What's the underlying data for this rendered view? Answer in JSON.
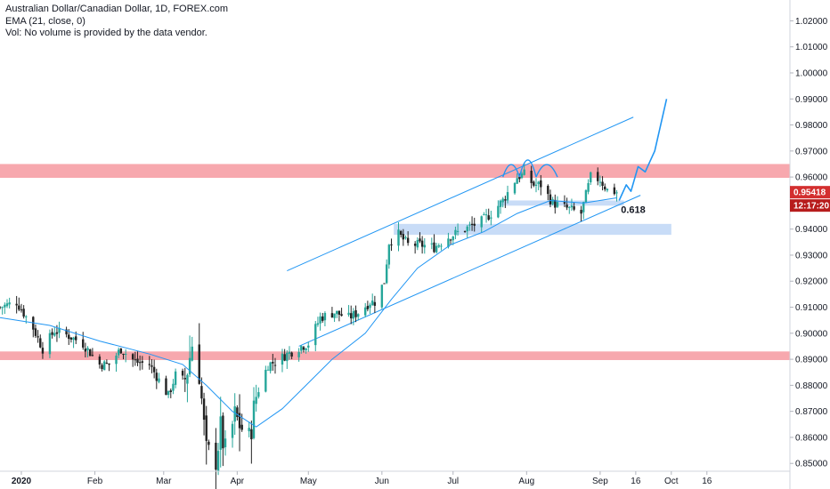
{
  "header": {
    "symbol_line": "Australian Dollar/Canadian Dollar, 1D, FOREX.com",
    "indicator_line": "EMA (21, close, 0)",
    "volume_line": "Vol: No volume is provided by the data vendor."
  },
  "chart_data": {
    "type": "candlestick",
    "title": "Australian Dollar/Canadian Dollar, 1D, FOREX.com",
    "ylim": [
      0.847,
      1.028
    ],
    "y_ticks": [
      0.85,
      0.86,
      0.87,
      0.88,
      0.89,
      0.9,
      0.91,
      0.92,
      0.93,
      0.94,
      0.95,
      0.96,
      0.97,
      0.98,
      0.99,
      1.0,
      1.01,
      1.02
    ],
    "y_tick_labels": [
      "0.85000",
      "0.86000",
      "0.87000",
      "0.88000",
      "0.89000",
      "0.90000",
      "0.91000",
      "0.92000",
      "0.93000",
      "0.94000",
      "0.95000",
      "0.96000",
      "0.97000",
      "0.98000",
      "0.99000",
      "1.00000",
      "1.01000",
      "1.02000"
    ],
    "x_range": [
      "2019-12-23",
      "2020-11-20"
    ],
    "x_ticks": [
      {
        "date": "2020-01-01",
        "label": "2020",
        "bold": true
      },
      {
        "date": "2020-02-01",
        "label": "Feb",
        "bold": false
      },
      {
        "date": "2020-03-01",
        "label": "Mar",
        "bold": false
      },
      {
        "date": "2020-04-01",
        "label": "Apr",
        "bold": false
      },
      {
        "date": "2020-05-01",
        "label": "May",
        "bold": false
      },
      {
        "date": "2020-06-01",
        "label": "Jun",
        "bold": false
      },
      {
        "date": "2020-07-01",
        "label": "Jul",
        "bold": false
      },
      {
        "date": "2020-08-01",
        "label": "Aug",
        "bold": false
      },
      {
        "date": "2020-09-01",
        "label": "Sep",
        "bold": false
      },
      {
        "date": "2020-09-16",
        "label": "16",
        "bold": false
      },
      {
        "date": "2020-10-01",
        "label": "Oct",
        "bold": false
      },
      {
        "date": "2020-10-16",
        "label": "16",
        "bold": false
      }
    ],
    "close_path": [
      [
        "2019-12-23",
        0.91
      ],
      [
        "2019-12-30",
        0.912
      ],
      [
        "2020-01-06",
        0.902
      ],
      [
        "2020-01-10",
        0.894
      ],
      [
        "2020-01-15",
        0.901
      ],
      [
        "2020-01-21",
        0.899
      ],
      [
        "2020-01-27",
        0.896
      ],
      [
        "2020-02-03",
        0.888
      ],
      [
        "2020-02-07",
        0.888
      ],
      [
        "2020-02-12",
        0.894
      ],
      [
        "2020-02-18",
        0.889
      ],
      [
        "2020-02-24",
        0.888
      ],
      [
        "2020-02-28",
        0.882
      ],
      [
        "2020-03-03",
        0.876
      ],
      [
        "2020-03-06",
        0.884
      ],
      [
        "2020-03-09",
        0.879
      ],
      [
        "2020-03-11",
        0.886
      ],
      [
        "2020-03-13",
        0.896
      ],
      [
        "2020-03-16",
        0.885
      ],
      [
        "2020-03-18",
        0.864
      ],
      [
        "2020-03-19",
        0.854
      ],
      [
        "2020-03-23",
        0.852
      ],
      [
        "2020-03-25",
        0.863
      ],
      [
        "2020-03-27",
        0.854
      ],
      [
        "2020-03-31",
        0.868
      ],
      [
        "2020-04-02",
        0.865
      ],
      [
        "2020-04-06",
        0.859
      ],
      [
        "2020-04-09",
        0.876
      ],
      [
        "2020-04-14",
        0.888
      ],
      [
        "2020-04-17",
        0.889
      ],
      [
        "2020-04-22",
        0.892
      ],
      [
        "2020-04-28",
        0.895
      ],
      [
        "2020-05-01",
        0.896
      ],
      [
        "2020-05-06",
        0.906
      ],
      [
        "2020-05-12",
        0.908
      ],
      [
        "2020-05-18",
        0.906
      ],
      [
        "2020-05-22",
        0.908
      ],
      [
        "2020-05-27",
        0.912
      ],
      [
        "2020-05-29",
        0.912
      ],
      [
        "2020-06-02",
        0.92
      ],
      [
        "2020-06-04",
        0.935
      ],
      [
        "2020-06-08",
        0.938
      ],
      [
        "2020-06-12",
        0.934
      ],
      [
        "2020-06-17",
        0.934
      ],
      [
        "2020-06-23",
        0.933
      ],
      [
        "2020-06-29",
        0.937
      ],
      [
        "2020-07-06",
        0.94
      ],
      [
        "2020-07-13",
        0.943
      ],
      [
        "2020-07-17",
        0.946
      ],
      [
        "2020-07-22",
        0.951
      ],
      [
        "2020-07-28",
        0.96
      ],
      [
        "2020-07-31",
        0.961
      ],
      [
        "2020-08-04",
        0.957
      ],
      [
        "2020-08-07",
        0.957
      ],
      [
        "2020-08-12",
        0.95
      ],
      [
        "2020-08-18",
        0.948
      ],
      [
        "2020-08-24",
        0.946
      ],
      [
        "2020-08-28",
        0.96
      ],
      [
        "2020-09-01",
        0.959
      ],
      [
        "2020-09-04",
        0.955
      ],
      [
        "2020-09-08",
        0.9542
      ]
    ],
    "ema_path": [
      [
        "2019-12-23",
        0.906
      ],
      [
        "2020-01-13",
        0.903
      ],
      [
        "2020-02-03",
        0.897
      ],
      [
        "2020-02-24",
        0.892
      ],
      [
        "2020-03-09",
        0.888
      ],
      [
        "2020-03-19",
        0.88
      ],
      [
        "2020-03-30",
        0.87
      ],
      [
        "2020-04-09",
        0.864
      ],
      [
        "2020-04-20",
        0.871
      ],
      [
        "2020-04-30",
        0.88
      ],
      [
        "2020-05-11",
        0.89
      ],
      [
        "2020-05-25",
        0.9
      ],
      [
        "2020-06-05",
        0.913
      ],
      [
        "2020-06-16",
        0.925
      ],
      [
        "2020-06-30",
        0.934
      ],
      [
        "2020-07-14",
        0.939
      ],
      [
        "2020-07-28",
        0.946
      ],
      [
        "2020-08-11",
        0.951
      ],
      [
        "2020-08-25",
        0.95
      ],
      [
        "2020-09-08",
        0.952
      ]
    ],
    "annotations": {
      "resistance_zone_upper": [
        0.9597,
        0.965
      ],
      "support_zone_lower": [
        0.8897,
        0.893
      ],
      "support_zone_mid": [
        0.9378,
        0.942
      ],
      "fib_zone": [
        0.949,
        0.951
      ],
      "fib_label": "0.618",
      "channel_upper": [
        [
          "2020-04-22",
          0.924
        ],
        [
          "2020-09-15",
          0.983
        ]
      ],
      "channel_lower": [
        [
          "2020-04-27",
          0.895
        ],
        [
          "2020-09-18",
          0.953
        ]
      ],
      "projection": [
        [
          "2020-09-09",
          0.951
        ],
        [
          "2020-09-12",
          0.957
        ],
        [
          "2020-09-14",
          0.9545
        ],
        [
          "2020-09-17",
          0.964
        ],
        [
          "2020-09-20",
          0.962
        ],
        [
          "2020-09-24",
          0.97
        ],
        [
          "2020-09-29",
          0.99
        ]
      ]
    },
    "last_price": "0.95418",
    "last_price_value": 0.95418,
    "countdown": "12:17:20",
    "colors": {
      "up": "#26a69a",
      "down": "#222222",
      "ema": "#2196f3",
      "zone_red": "#f7a8ae",
      "zone_blue": "#c8dcf7",
      "price_tag": "#d32f2f",
      "countdown_tag": "#b71c1c"
    }
  }
}
